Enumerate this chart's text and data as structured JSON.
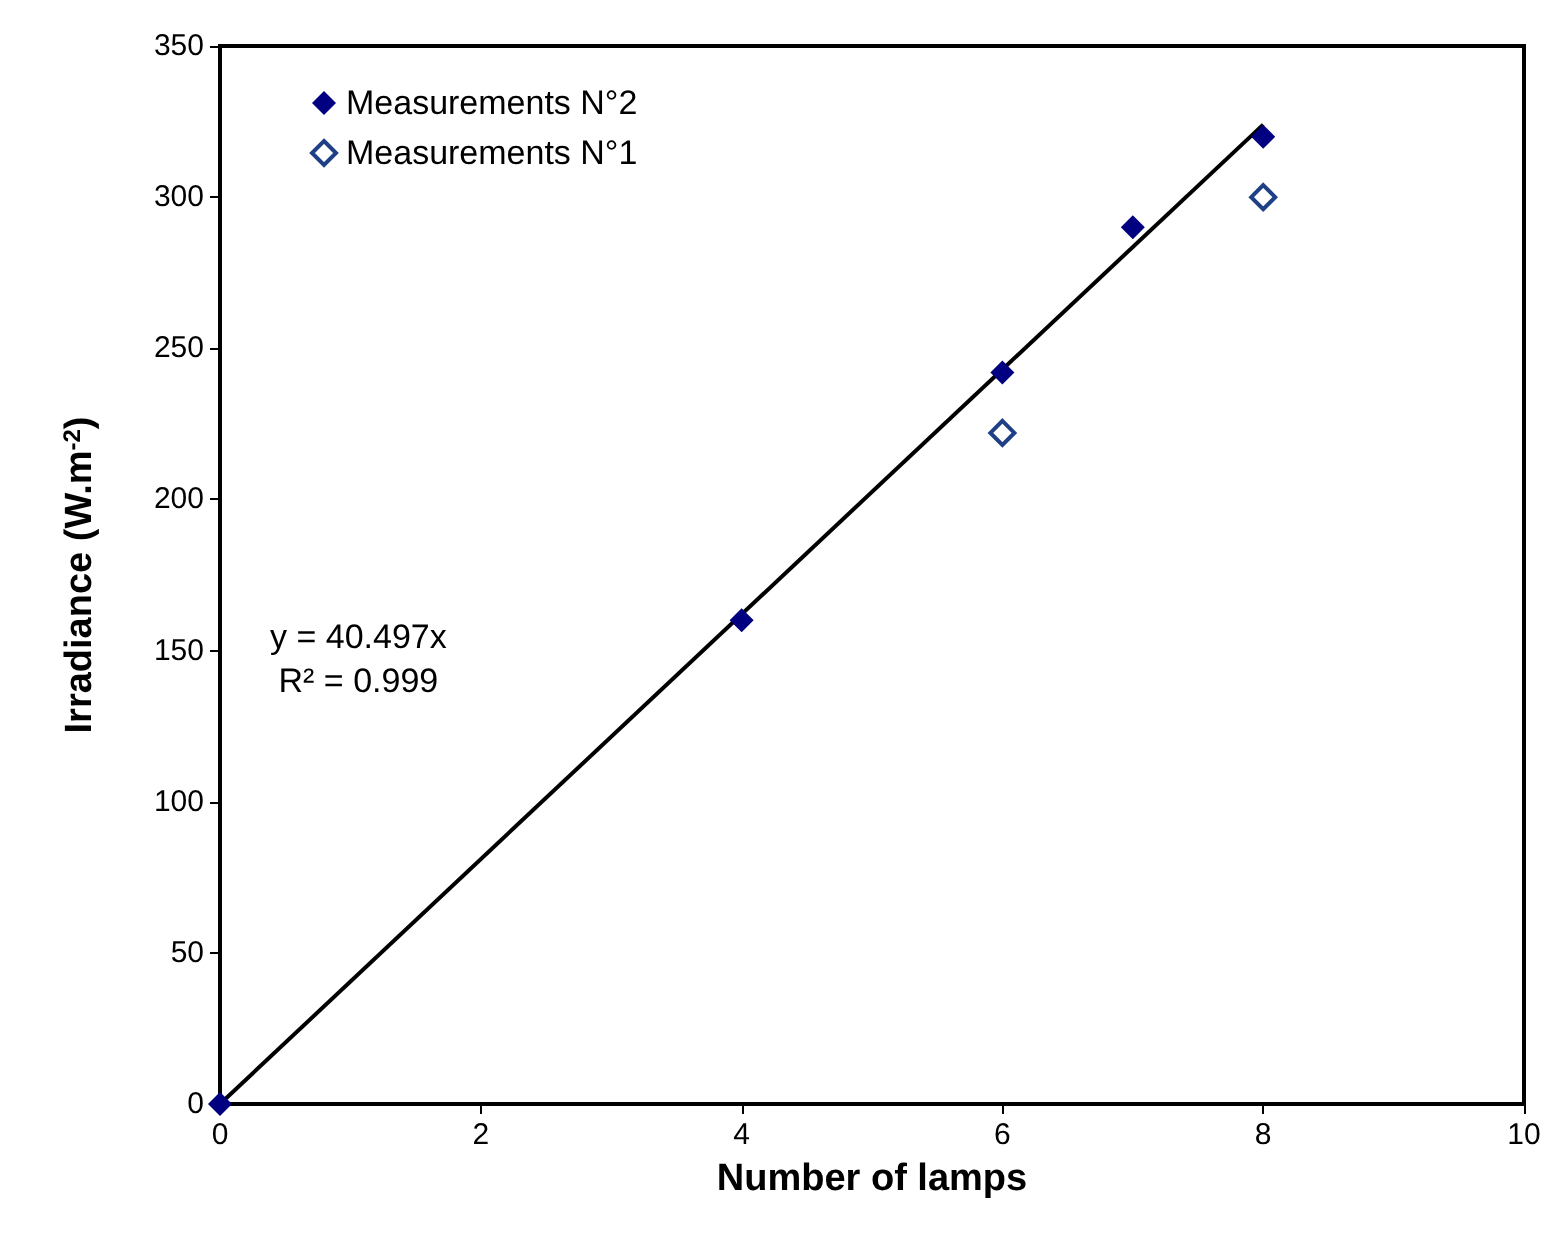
{
  "chart_data": {
    "type": "scatter",
    "xlabel": "Number of lamps",
    "ylabel": "Irradiance (W.m$^{-2}$)",
    "xlim": [
      0,
      10
    ],
    "xticks": [
      0,
      2,
      4,
      6,
      8,
      10
    ],
    "ylim": [
      0,
      350
    ],
    "yticks": [
      0,
      50,
      100,
      150,
      200,
      250,
      300,
      350
    ],
    "grid": false,
    "legend": "top left",
    "marker": "diamond",
    "annotations": [
      "y = 40.497x",
      "R² = 0.999"
    ],
    "series": [
      {
        "name": "Measurements N°2",
        "color": "#000080",
        "x": [
          0,
          4,
          6,
          7,
          8
        ],
        "values": [
          0,
          160,
          242,
          290,
          320
        ]
      },
      {
        "name": "Measurements N°1",
        "color": "#1f3f86",
        "x": [
          6,
          8
        ],
        "values": [
          222,
          300
        ]
      },
      {
        "type": "line",
        "color": "#000000",
        "marker": "none",
        "x": [
          0,
          8
        ],
        "values": [
          0,
          324
        ]
      }
    ]
  }
}
